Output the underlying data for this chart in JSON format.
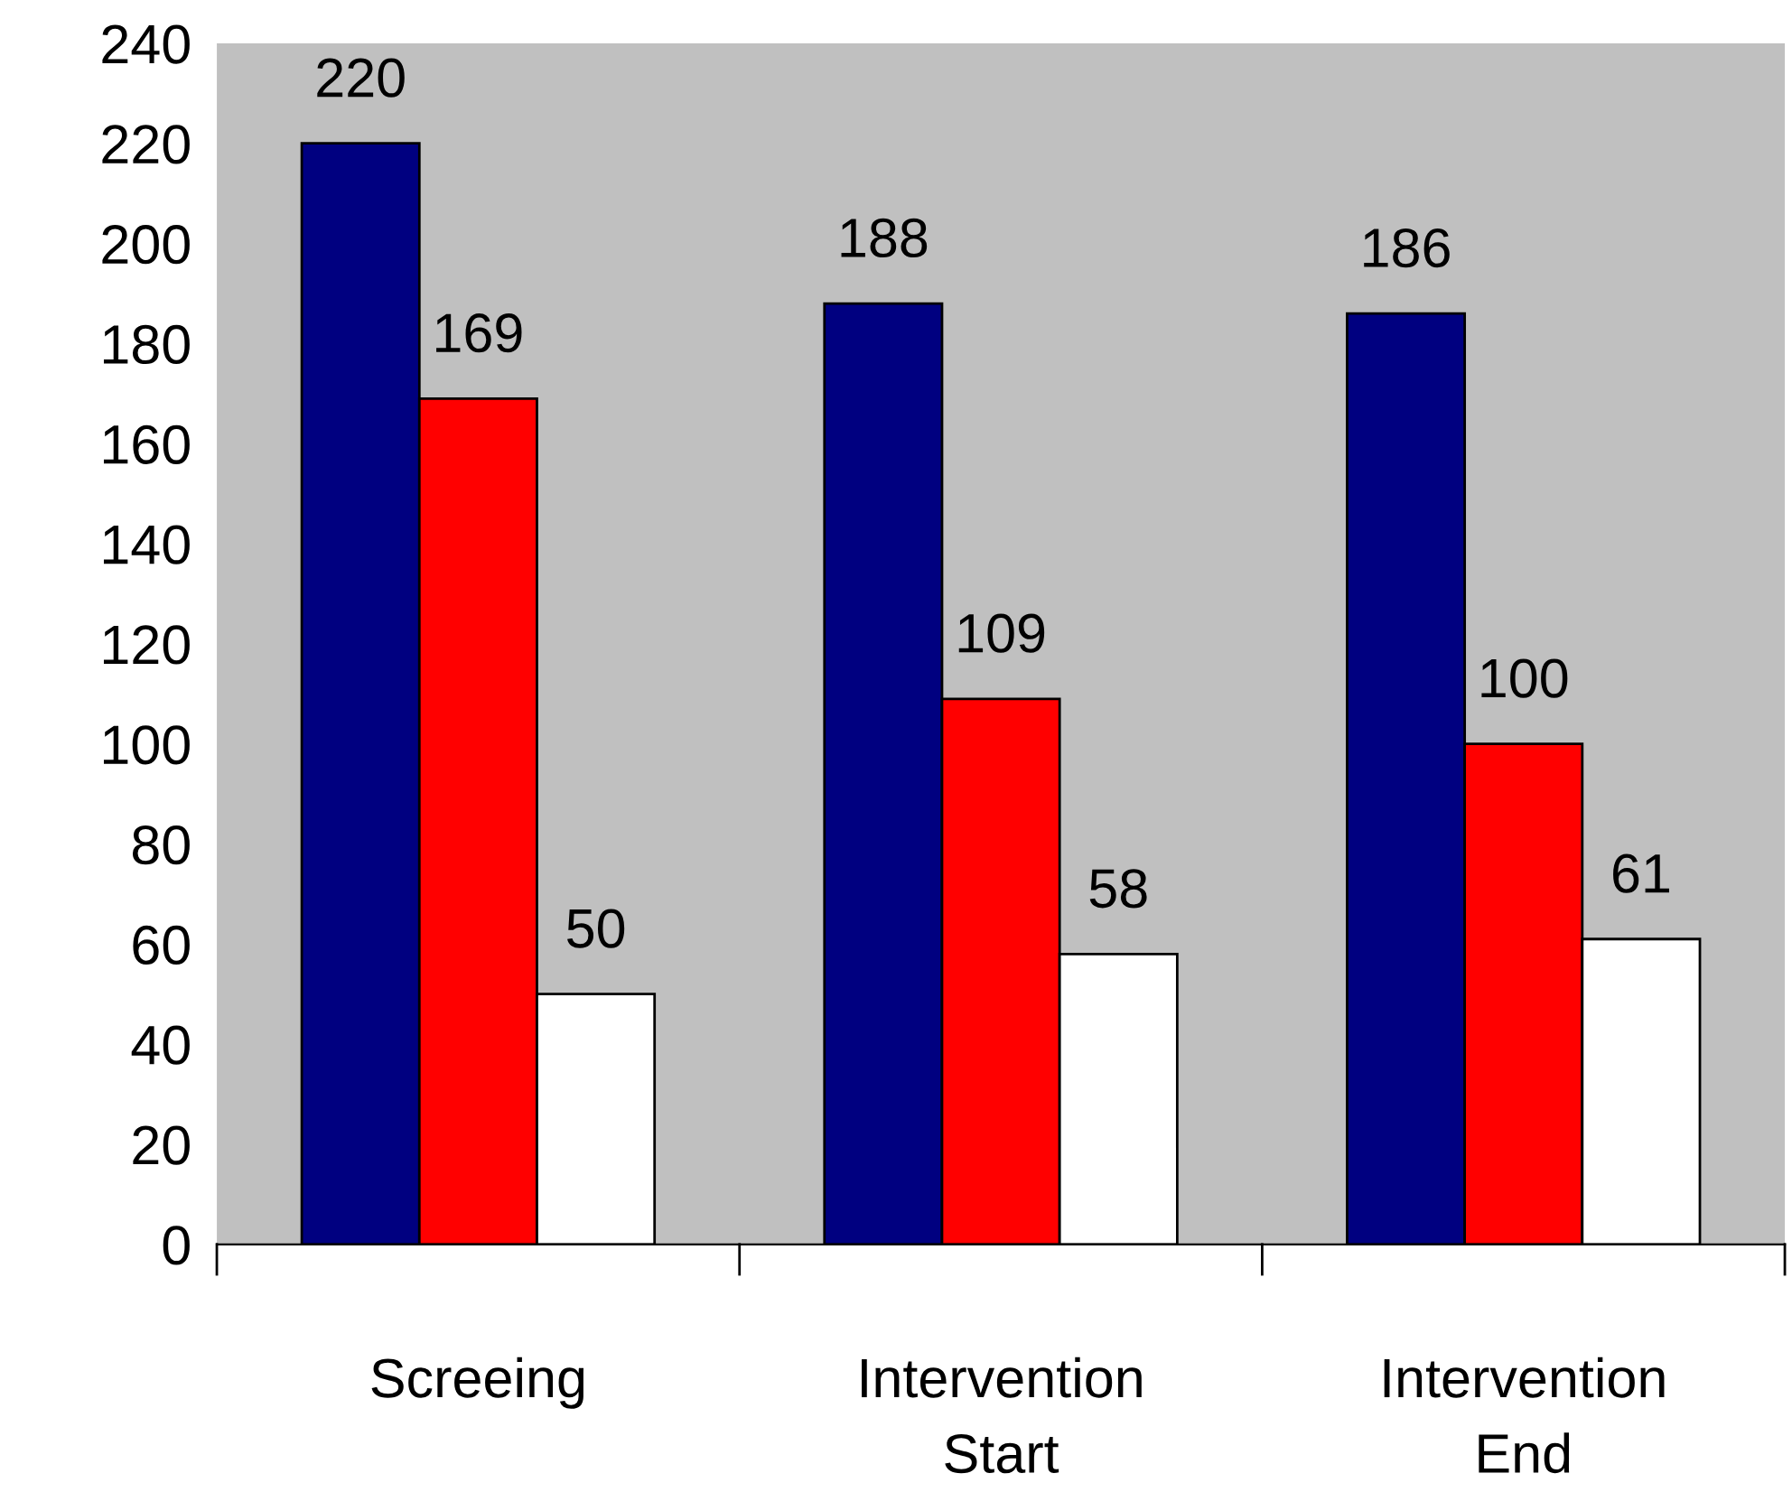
{
  "chart_data": {
    "type": "bar",
    "categories": [
      "Screeing",
      "Intervention\nStart",
      "Intervention\nEnd"
    ],
    "series": [
      {
        "color": "#000080",
        "values": [
          220,
          188,
          186
        ]
      },
      {
        "color": "#ff0000",
        "values": [
          169,
          109,
          100
        ]
      },
      {
        "color": "#ffffff",
        "values": [
          50,
          58,
          61
        ]
      }
    ],
    "ylim": [
      0,
      240
    ],
    "yticks": [
      0,
      20,
      40,
      60,
      80,
      100,
      120,
      140,
      160,
      180,
      200,
      220,
      240
    ],
    "data_labels": true,
    "grid": false,
    "legend": false
  }
}
